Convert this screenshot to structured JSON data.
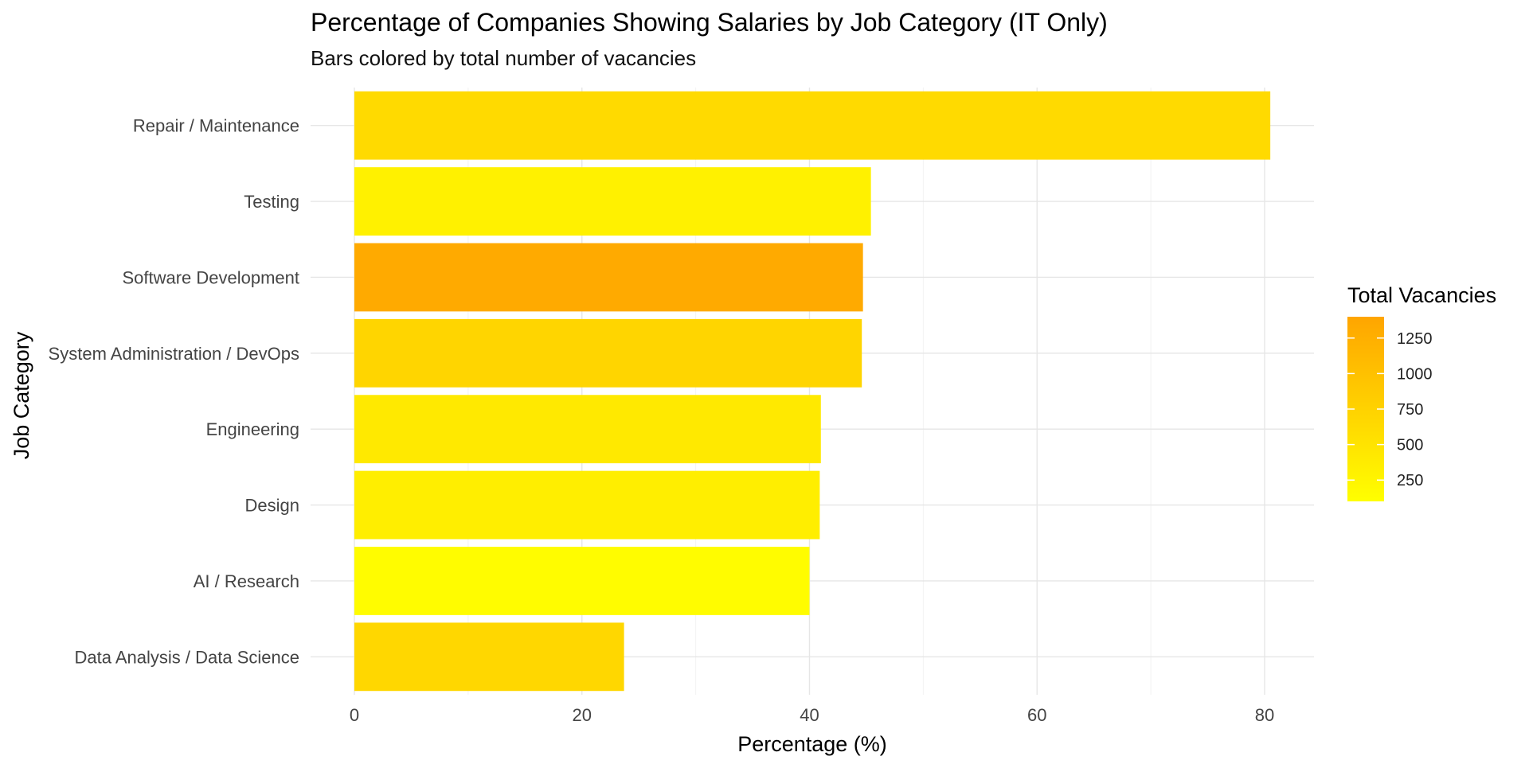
{
  "chart_data": {
    "type": "bar",
    "orientation": "horizontal",
    "title": "Percentage of Companies Showing Salaries by Job Category (IT Only)",
    "subtitle": "Bars colored by total number of vacancies",
    "xlabel": "Percentage (%)",
    "ylabel": "Job Category",
    "xlim": [
      0,
      84.5
    ],
    "xticks": [
      0,
      20,
      40,
      60,
      80
    ],
    "grid": true,
    "categories": [
      "Repair / Maintenance",
      "Testing",
      "Software Development",
      "System Administration / DevOps",
      "Engineering",
      "Design",
      "AI / Research",
      "Data Analysis / Data Science"
    ],
    "values": [
      80.5,
      45.4,
      44.7,
      44.6,
      41.0,
      40.9,
      40.0,
      23.7
    ],
    "vacancies": [
      640,
      300,
      1330,
      700,
      420,
      350,
      150,
      680
    ],
    "legend": {
      "title": "Total Vacancies",
      "placement": "right",
      "ticks": [
        250,
        500,
        750,
        1000,
        1250
      ],
      "range": [
        100,
        1400
      ],
      "color_low": "#FFFF00",
      "color_high": "#FFA500"
    }
  }
}
